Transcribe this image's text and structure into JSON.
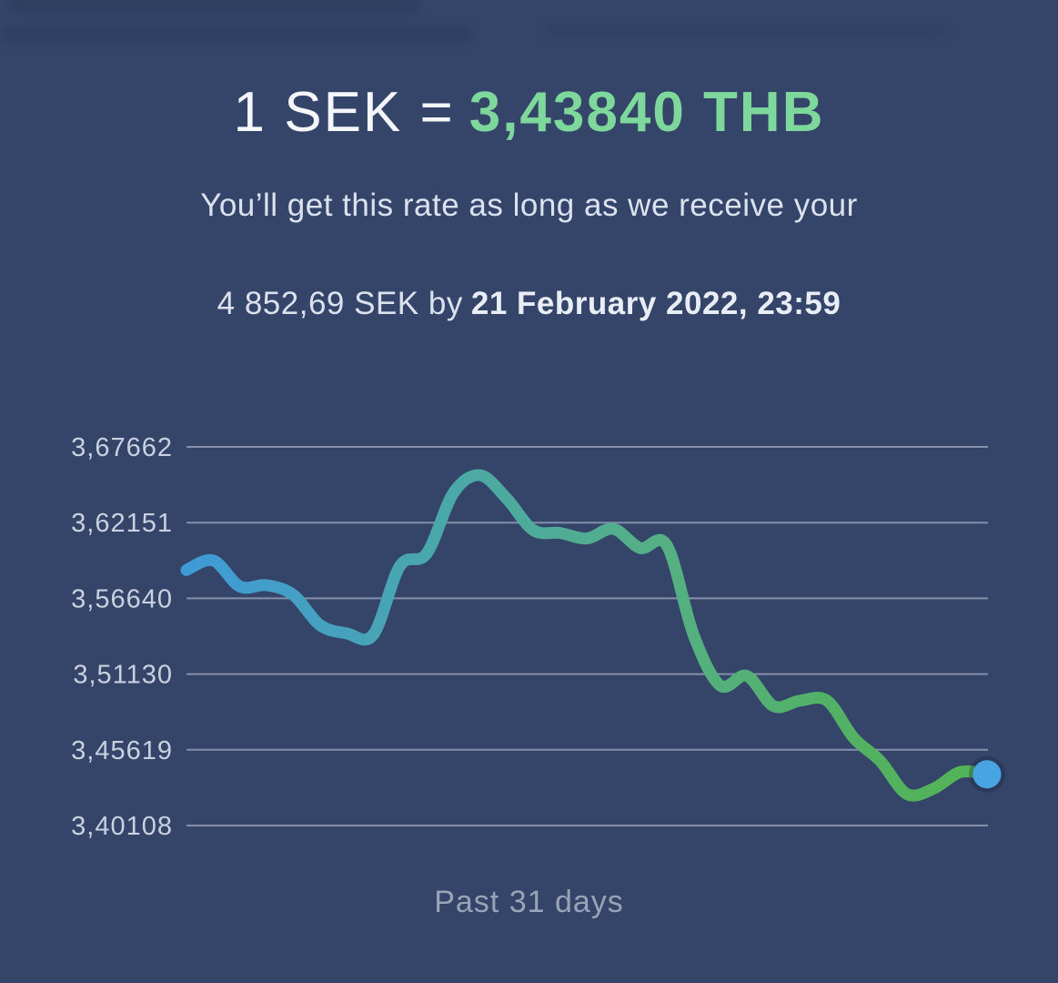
{
  "header": {
    "rate_title": {
      "base": "1 SEK =",
      "quote": "3,43840 THB"
    },
    "guarantee_line1": "You’ll get this rate as long as we receive your",
    "guarantee_amount": "4 852,69 SEK by",
    "guarantee_deadline": "21 February 2022, 23:59"
  },
  "chart_data": {
    "type": "line",
    "title": "1 SEK = 3,43840 THB",
    "xlabel": "Past 31 days",
    "ylabel": "",
    "num_points": 31,
    "values": [
      3.587,
      3.594,
      3.575,
      3.576,
      3.569,
      3.547,
      3.541,
      3.54,
      3.59,
      3.599,
      3.643,
      3.656,
      3.639,
      3.616,
      3.614,
      3.61,
      3.617,
      3.603,
      3.605,
      3.54,
      3.503,
      3.51,
      3.488,
      3.492,
      3.492,
      3.465,
      3.448,
      3.424,
      3.428,
      3.44,
      3.4384
    ],
    "last_value_label": "3,43840",
    "yticks": {
      "labels": [
        "3,67662",
        "3,62151",
        "3,56640",
        "3,51130",
        "3,45619",
        "3,40108"
      ],
      "values": [
        3.67662,
        3.62151,
        3.5664,
        3.5113,
        3.45619,
        3.40108
      ]
    },
    "ylim": [
      3.40108,
      3.67662
    ],
    "grid": "horizontal",
    "legend": false,
    "gradient_stops": [
      {
        "offset": 0,
        "color": "#3f9ad8"
      },
      {
        "offset": 0.33,
        "color": "#4ba8a8"
      },
      {
        "offset": 0.6,
        "color": "#55b083"
      },
      {
        "offset": 0.82,
        "color": "#52b164"
      },
      {
        "offset": 1,
        "color": "#52b456"
      }
    ],
    "endpoint_color": "#49a4e3"
  },
  "colors": {
    "background": "#344569",
    "title_white": "#f4f6fa",
    "rate_green": "#7ed79b",
    "subtitle_text": "#dce1ee",
    "axis_label": "#c9d1e1",
    "xlabel_text": "#99a3b7",
    "gridline": "#a6b1c6"
  }
}
